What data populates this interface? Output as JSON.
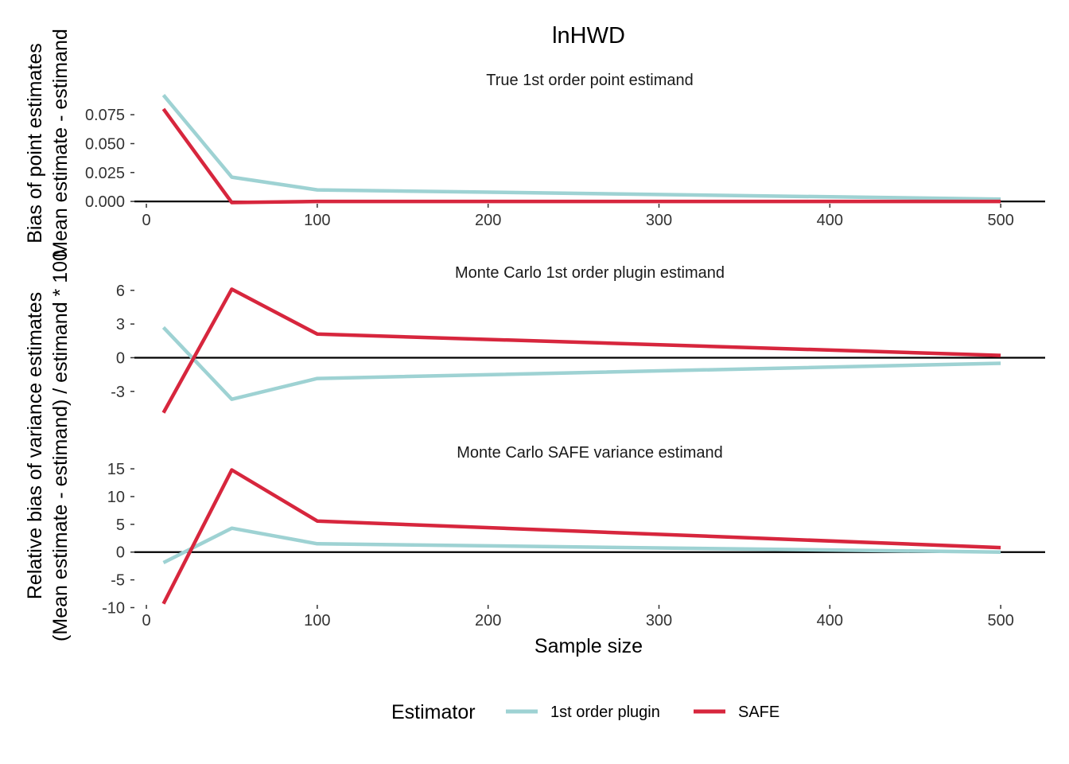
{
  "chart_data": {
    "type": "line",
    "title": "lnHWD",
    "xlabel": "Sample size",
    "ylabel_top": [
      "Bias of point estimates",
      "Mean estimate - estimand"
    ],
    "ylabel_bottom": [
      "Relative bias of variance estimates",
      "(Mean estimate - estimand) / estimand * 100"
    ],
    "legend": {
      "title": "Estimator",
      "position": "bottom",
      "entries": [
        {
          "name": "1st order plugin",
          "color": "#9ED2D3"
        },
        {
          "name": "SAFE",
          "color": "#D7263D"
        }
      ]
    },
    "x": [
      10,
      50,
      100,
      500
    ],
    "xlim": [
      -7,
      526
    ],
    "xticks": [
      0,
      100,
      200,
      300,
      400,
      500
    ],
    "reference_line": 0,
    "grid": false,
    "panels": [
      {
        "subtitle": "True 1st order point estimand",
        "ylim": [
          -0.002,
          0.093
        ],
        "yticks": [
          0.0,
          0.025,
          0.05,
          0.075
        ],
        "ytick_labels": [
          "0.000",
          "0.025",
          "0.050",
          "0.075"
        ],
        "series": [
          {
            "name": "1st order plugin",
            "values": [
              0.092,
              0.021,
              0.01,
              0.002
            ]
          },
          {
            "name": "SAFE",
            "values": [
              0.08,
              -0.001,
              0.0,
              0.0
            ]
          }
        ]
      },
      {
        "subtitle": "Monte Carlo 1st order plugin estimand",
        "ylim": [
          -5.0,
          6.2
        ],
        "yticks": [
          -3,
          0,
          3,
          6
        ],
        "ytick_labels": [
          "-3",
          "0",
          "3",
          "6"
        ],
        "series": [
          {
            "name": "1st order plugin",
            "values": [
              2.7,
              -3.7,
              -1.85,
              -0.5
            ]
          },
          {
            "name": "SAFE",
            "values": [
              -4.9,
              6.1,
              2.1,
              0.2
            ]
          }
        ]
      },
      {
        "subtitle": "Monte Carlo SAFE variance estimand",
        "ylim": [
          -9.5,
          15.3
        ],
        "yticks": [
          -10,
          -5,
          0,
          5,
          10,
          15
        ],
        "ytick_labels": [
          "-10",
          "-5",
          "0",
          "5",
          "10",
          "15"
        ],
        "series": [
          {
            "name": "1st order plugin",
            "values": [
              -1.9,
              4.3,
              1.5,
              0.0
            ]
          },
          {
            "name": "SAFE",
            "values": [
              -9.3,
              14.8,
              5.6,
              0.8
            ]
          }
        ]
      }
    ]
  }
}
